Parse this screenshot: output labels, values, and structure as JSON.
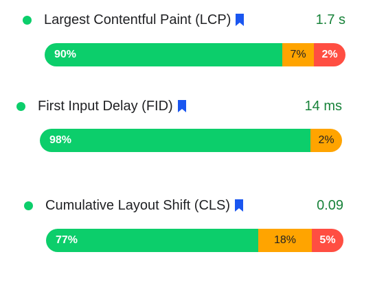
{
  "colors": {
    "good": "#0cce6b",
    "needs_improvement": "#ffa400",
    "poor": "#ff4e42",
    "value_text": "#178239",
    "bookmark": "#1a56f0"
  },
  "metrics": [
    {
      "name": "Largest Contentful Paint (LCP)",
      "icon": "bookmark-icon",
      "value": "1.7 s",
      "distribution": {
        "good": 90,
        "needs_improvement": 7,
        "poor": 2,
        "good_label": "90%",
        "needs_improvement_label": "7%",
        "poor_label": "2%"
      }
    },
    {
      "name": "First Input Delay (FID)",
      "icon": "bookmark-icon",
      "value": "14 ms",
      "distribution": {
        "good": 98,
        "needs_improvement": 2,
        "poor": 0,
        "good_label": "98%",
        "needs_improvement_label": "2%",
        "poor_label": ""
      }
    },
    {
      "name": "Cumulative Layout Shift (CLS)",
      "icon": "bookmark-icon",
      "value": "0.09",
      "distribution": {
        "good": 77,
        "needs_improvement": 18,
        "poor": 5,
        "good_label": "77%",
        "needs_improvement_label": "18%",
        "poor_label": "5%"
      }
    }
  ]
}
